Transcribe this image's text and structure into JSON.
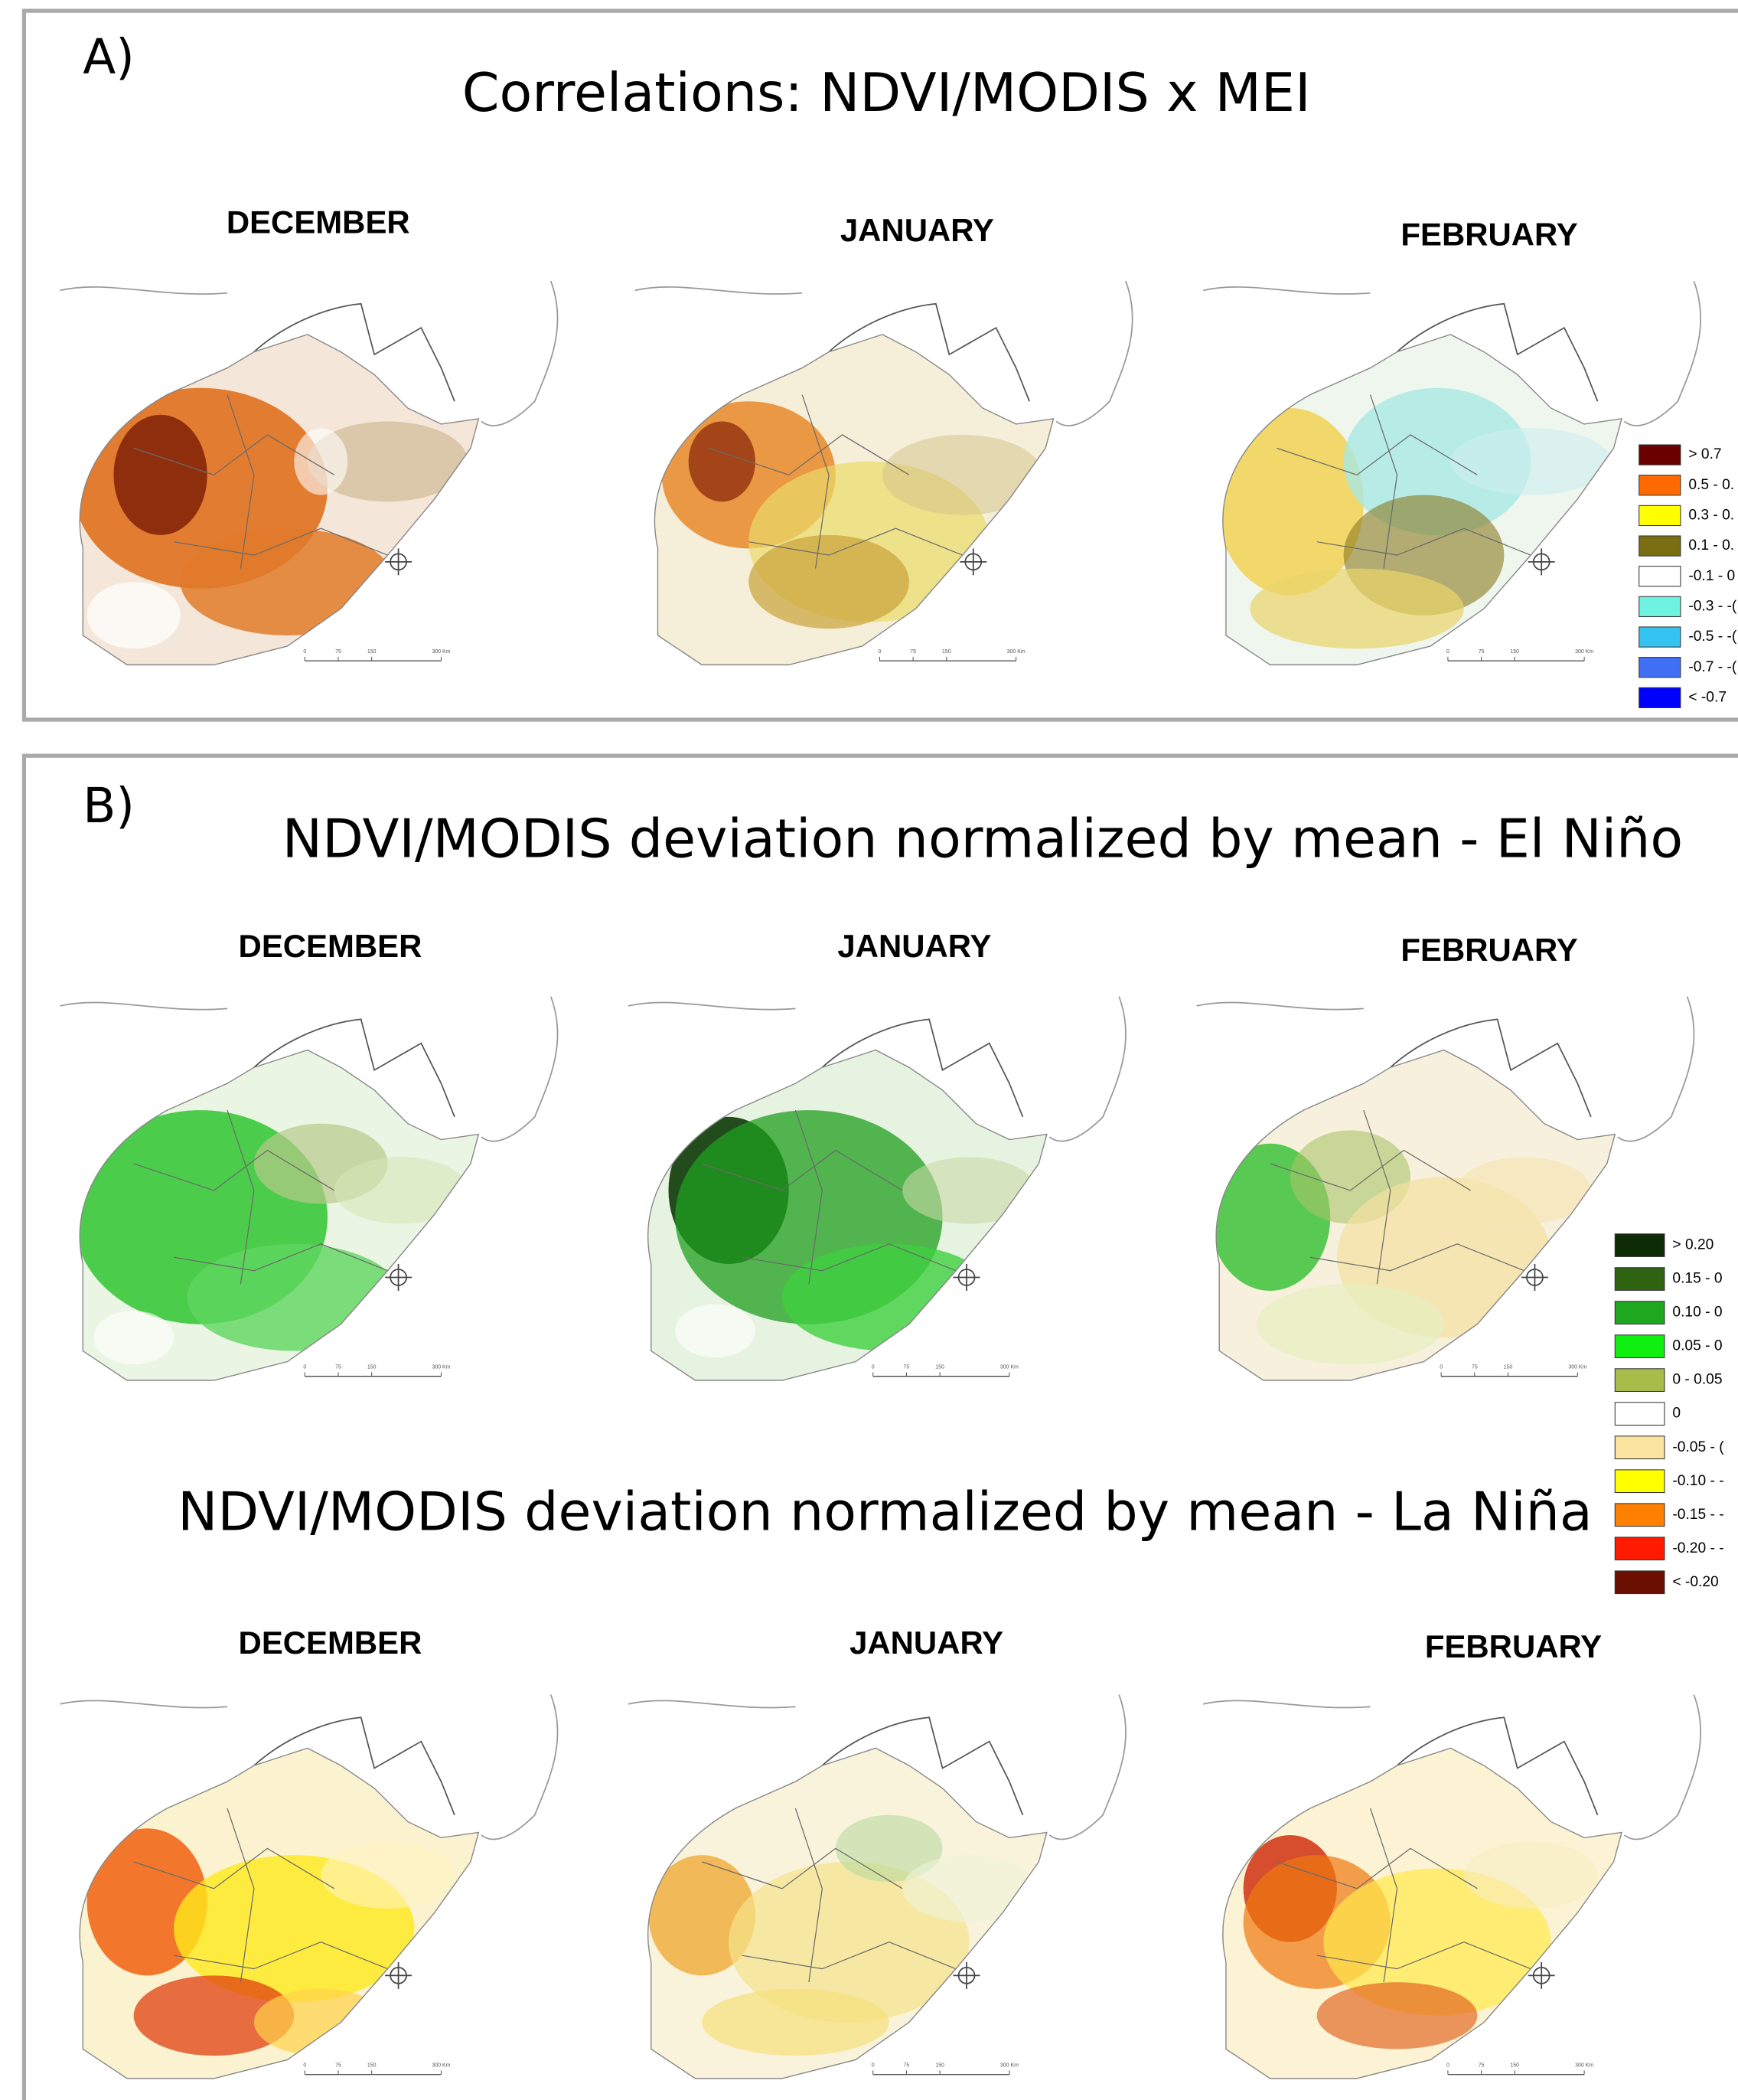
{
  "panel_a": {
    "label": "A)",
    "title": "Correlations: NDVI/MODIS x MEI",
    "months": [
      "DECEMBER",
      "JANUARY",
      "FEBRUARY"
    ],
    "legend": [
      {
        "label": "> 0.7",
        "color": "#6b0000"
      },
      {
        "label": "0.5 - 0.",
        "color": "#ff6a00"
      },
      {
        "label": "0.3 - 0.",
        "color": "#ffff00"
      },
      {
        "label": "0.1 - 0.",
        "color": "#7a6e12"
      },
      {
        "label": "-0.1 - 0",
        "color": "#ffffff"
      },
      {
        "label": "-0.3 - -(",
        "color": "#6ff2e0"
      },
      {
        "label": "-0.5 - -(",
        "color": "#35c4f2"
      },
      {
        "label": "-0.7 - -(",
        "color": "#3f6ff5"
      },
      {
        "label": "< -0.7",
        "color": "#0000ff"
      }
    ]
  },
  "panel_b": {
    "label": "B)",
    "el_nino": {
      "title": "NDVI/MODIS deviation normalized by mean - El Niño",
      "months": [
        "DECEMBER",
        "JANUARY",
        "FEBRUARY"
      ]
    },
    "la_nina": {
      "title": "NDVI/MODIS deviation normalized by mean - La Niña",
      "months": [
        "DECEMBER",
        "JANUARY",
        "FEBRUARY"
      ]
    },
    "legend": [
      {
        "label": "> 0.20",
        "color": "#0d2b05"
      },
      {
        "label": "0.15 - 0",
        "color": "#2f6312"
      },
      {
        "label": "0.10 - 0",
        "color": "#1fa81f"
      },
      {
        "label": "0.05 - 0",
        "color": "#10f010"
      },
      {
        "label": "0 - 0.05",
        "color": "#a7bd4a"
      },
      {
        "label": "0",
        "color": "#ffffff"
      },
      {
        "label": "-0.05 - (",
        "color": "#fbe3a0"
      },
      {
        "label": "-0.10 - -",
        "color": "#ffff00"
      },
      {
        "label": "-0.15 - -",
        "color": "#ff7f00"
      },
      {
        "label": "-0.20 - -",
        "color": "#ff1a00"
      },
      {
        "label": "< -0.20",
        "color": "#6b1000"
      }
    ]
  },
  "scale_bar": [
    "0",
    "75",
    "150",
    "300 Km"
  ]
}
